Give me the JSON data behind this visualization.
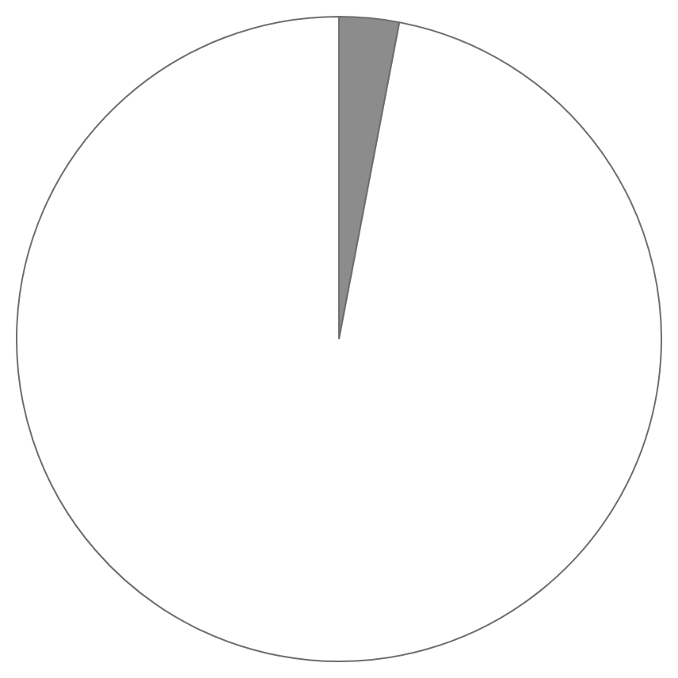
{
  "chart_data": {
    "type": "pie",
    "categories": [
      null,
      null
    ],
    "values": [
      3,
      97
    ],
    "colors": [
      "#8c8c8c",
      "#ffffff"
    ],
    "legend": false
  }
}
